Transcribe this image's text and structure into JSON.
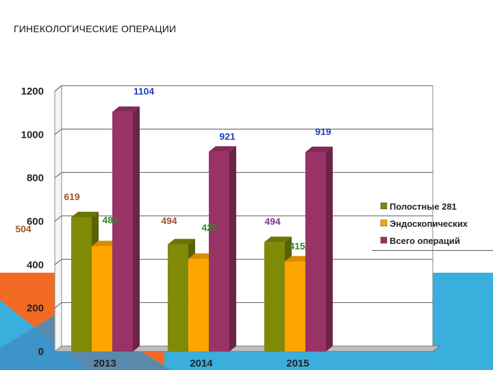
{
  "slide": {
    "title": "ГИНЕКОЛОГИЧЕСКИЕ ОПЕРАЦИИ"
  },
  "colors": {
    "series_abdominal": "#7f8a06",
    "series_endoscopic": "#ffa500",
    "series_total": "#993366",
    "label_blue": "#1f3fbf",
    "label_brown": "#a0522d",
    "label_green": "#2e8b22",
    "label_purple": "#7a3a8a",
    "bg_orange": "#f26a24",
    "bg_blue": "#3aaedc"
  },
  "chart_data": {
    "type": "bar",
    "categories": [
      "2013",
      "2014",
      "2015"
    ],
    "series": [
      {
        "name": "Полостные 281",
        "values": [
          619,
          494,
          504
        ]
      },
      {
        "name": "Эндоскопических",
        "values": [
          485,
          427,
          415
        ]
      },
      {
        "name": "Всего операций",
        "values": [
          1104,
          921,
          919
        ]
      }
    ],
    "ylim": [
      0,
      1200
    ],
    "yticks": [
      "0",
      "200",
      "400",
      "600",
      "800",
      "1000",
      "1200"
    ],
    "grid": true,
    "legend_position": "right",
    "data_labels": [
      {
        "text": "1104",
        "color": "label_blue"
      },
      {
        "text": "921",
        "color": "label_blue"
      },
      {
        "text": "919",
        "color": "label_blue"
      },
      {
        "text": "619",
        "color": "label_brown"
      },
      {
        "text": "494",
        "color": "label_brown"
      },
      {
        "text": "504",
        "color": "label_brown"
      },
      {
        "text": "485",
        "color": "label_green"
      },
      {
        "text": "427",
        "color": "label_green"
      },
      {
        "text": "415",
        "color": "label_green"
      },
      {
        "text": "494",
        "color": "label_purple"
      }
    ]
  }
}
